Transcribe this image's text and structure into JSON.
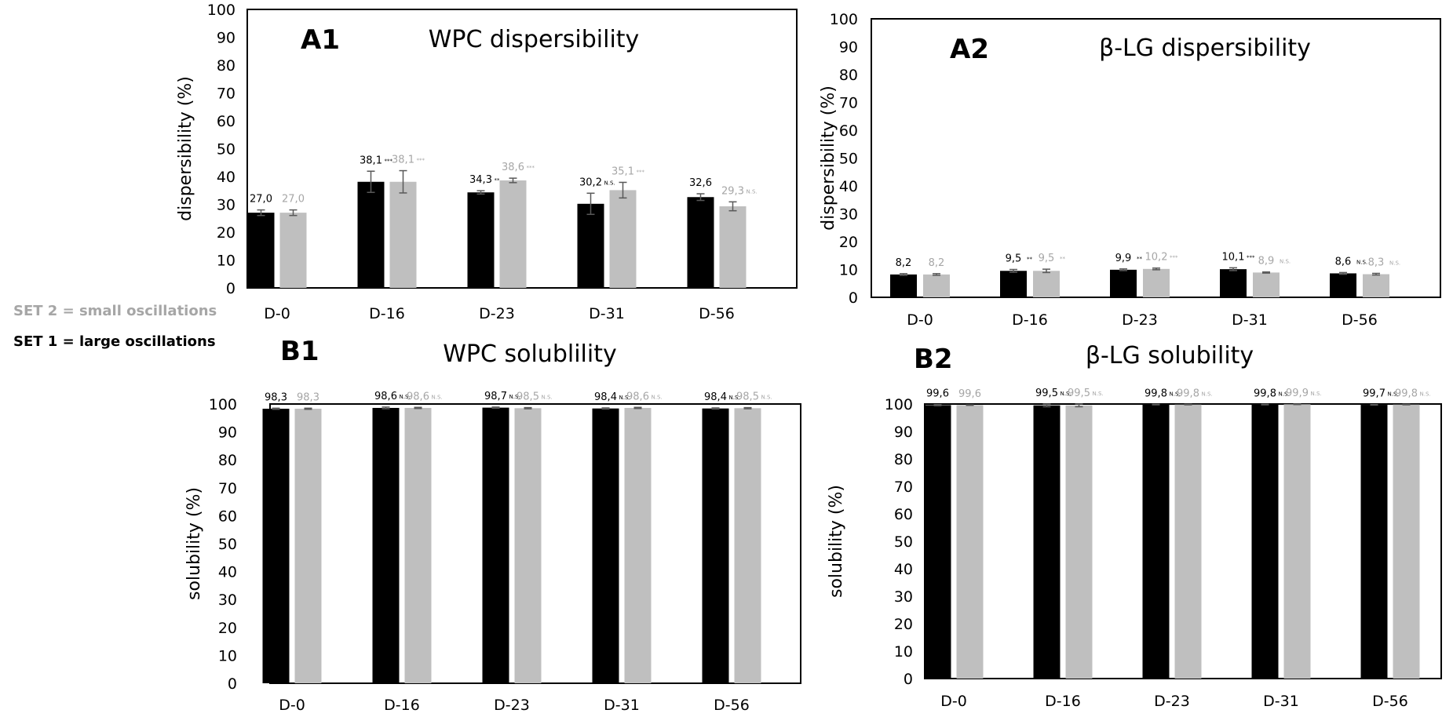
{
  "legend": {
    "set2": "SET 2 = small oscillations",
    "set1": "SET 1 = large oscillations"
  },
  "colors": {
    "set1": "#000000",
    "set2": "#bfbfbf",
    "set2_text": "#a6a6a6",
    "error": "#595959"
  },
  "chart_data": [
    {
      "type": "bar",
      "panel": "A1",
      "title": "WPC dispersibility",
      "ylabel": "dispersibility (%)",
      "ylim": [
        0,
        100
      ],
      "yticks": [
        0,
        10,
        20,
        30,
        40,
        50,
        60,
        70,
        80,
        90,
        100
      ],
      "categories": [
        "D-0",
        "D-16",
        "D-23",
        "D-31",
        "D-56"
      ],
      "series": [
        {
          "values": [
            27.0,
            38.1,
            34.3,
            30.2,
            32.6
          ],
          "errors": [
            1.0,
            3.8,
            0.6,
            3.8,
            1.2
          ],
          "labels": [
            "27,0",
            "38,1",
            "34,3",
            "30,2",
            "32,6"
          ],
          "sig": [
            "",
            "***",
            "**",
            "N.S.",
            ""
          ]
        },
        {
          "values": [
            27.0,
            38.1,
            38.6,
            35.1,
            29.3
          ],
          "errors": [
            1.0,
            4.0,
            0.8,
            2.8,
            1.6
          ],
          "labels": [
            "27,0",
            "38,1",
            "38,6",
            "35,1",
            "29,3"
          ],
          "sig": [
            "",
            "***",
            "***",
            "***",
            "N.S."
          ]
        }
      ]
    },
    {
      "type": "bar",
      "panel": "A2",
      "title": "β-LG dispersibility",
      "ylabel": "dispersibility (%)",
      "ylim": [
        0,
        100
      ],
      "yticks": [
        0,
        10,
        20,
        30,
        40,
        50,
        60,
        70,
        80,
        90,
        100
      ],
      "categories": [
        "D-0",
        "D-16",
        "D-23",
        "D-31",
        "D-56"
      ],
      "series": [
        {
          "values": [
            8.2,
            9.5,
            9.9,
            10.1,
            8.6
          ],
          "errors": [
            0.3,
            0.5,
            0.3,
            0.5,
            0.3
          ],
          "labels": [
            "8,2",
            "9,5",
            "9,9",
            "10,1",
            "8,6"
          ],
          "sig": [
            "",
            "**",
            "**",
            "***",
            "N.S."
          ]
        },
        {
          "values": [
            8.2,
            9.5,
            10.2,
            8.9,
            8.3
          ],
          "errors": [
            0.3,
            0.6,
            0.3,
            0.2,
            0.3
          ],
          "labels": [
            "8,2",
            "9,5",
            "10,2",
            "8,9",
            "8,3"
          ],
          "sig": [
            "",
            "**",
            "***",
            "N.S.",
            "N.S."
          ]
        }
      ]
    },
    {
      "type": "bar",
      "panel": "B1",
      "title": "WPC solublility",
      "ylabel": "solubility (%)",
      "ylim": [
        0,
        100
      ],
      "yticks": [
        0,
        10,
        20,
        30,
        40,
        50,
        60,
        70,
        80,
        90,
        100
      ],
      "categories": [
        "D-0",
        "D-16",
        "D-23",
        "D-31",
        "D-56"
      ],
      "series": [
        {
          "values": [
            98.3,
            98.6,
            98.7,
            98.4,
            98.4
          ],
          "errors": [
            0.2,
            0.3,
            0.2,
            0.2,
            0.2
          ],
          "labels": [
            "98,3",
            "98,6",
            "98,7",
            "98,4",
            "98,4"
          ],
          "sig": [
            "",
            "N.S.",
            "N.S.",
            "N.S.",
            "N.S."
          ]
        },
        {
          "values": [
            98.3,
            98.6,
            98.5,
            98.6,
            98.5
          ],
          "errors": [
            0.2,
            0.2,
            0.2,
            0.2,
            0.2
          ],
          "labels": [
            "98,3",
            "98,6",
            "98,5",
            "98,6",
            "98,5"
          ],
          "sig": [
            "",
            "N.S.",
            "N.S.",
            "N.S.",
            "N.S."
          ]
        }
      ]
    },
    {
      "type": "bar",
      "panel": "B2",
      "title": "β-LG solubility",
      "ylabel": "solubility (%)",
      "ylim": [
        0,
        100
      ],
      "yticks": [
        0,
        10,
        20,
        30,
        40,
        50,
        60,
        70,
        80,
        90,
        100
      ],
      "categories": [
        "D-0",
        "D-16",
        "D-23",
        "D-31",
        "D-56"
      ],
      "series": [
        {
          "values": [
            99.6,
            99.5,
            99.8,
            99.8,
            99.7
          ],
          "errors": [
            0.2,
            0.5,
            0.1,
            0.1,
            0.1
          ],
          "labels": [
            "99,6",
            "99,5",
            "99,8",
            "99,8",
            "99,7"
          ],
          "sig": [
            "",
            "N.S.",
            "N.S.",
            "N.S.",
            "N.S."
          ]
        },
        {
          "values": [
            99.6,
            99.5,
            99.8,
            99.9,
            99.8
          ],
          "errors": [
            0.1,
            0.5,
            0.1,
            0.1,
            0.1
          ],
          "labels": [
            "99,6",
            "99,5",
            "99,8",
            "99,9",
            "99,8"
          ],
          "sig": [
            "",
            "N.S.",
            "N.S.",
            "N.S.",
            "N.S."
          ]
        }
      ]
    }
  ]
}
